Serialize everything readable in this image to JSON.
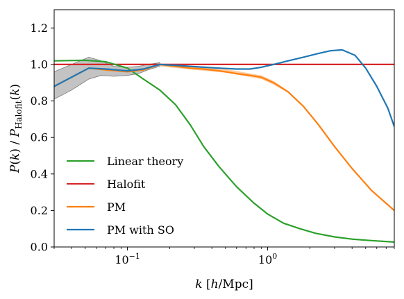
{
  "chart_data": {
    "type": "line",
    "title": "",
    "xlabel": "k [h/Mpc]",
    "ylabel": "P(k) / P_Halofit(k)",
    "xscale": "log",
    "xlim": [
      0.03,
      8
    ],
    "ylim": [
      0,
      1.3
    ],
    "grid": false,
    "legend_position": "lower-left",
    "xtick_labels": [
      "10^-1",
      "10^0"
    ],
    "yticks": [
      0.0,
      0.2,
      0.4,
      0.6,
      0.8,
      1.0,
      1.2
    ],
    "ytick_labels": [
      "0.0",
      "0.2",
      "0.4",
      "0.6",
      "0.8",
      "1.0",
      "1.2"
    ],
    "series": [
      {
        "name": "Linear theory",
        "color": "#2ca02c",
        "x": [
          0.03,
          0.05,
          0.07,
          0.1,
          0.13,
          0.17,
          0.22,
          0.28,
          0.35,
          0.45,
          0.6,
          0.8,
          1.0,
          1.3,
          1.7,
          2.2,
          3.0,
          4.0,
          5.5,
          8.0
        ],
        "y": [
          1.02,
          1.023,
          1.015,
          0.98,
          0.92,
          0.86,
          0.78,
          0.67,
          0.55,
          0.44,
          0.33,
          0.24,
          0.18,
          0.13,
          0.1,
          0.075,
          0.055,
          0.043,
          0.035,
          0.027
        ]
      },
      {
        "name": "Halofit",
        "color": "#d62728",
        "x": [
          0.03,
          8.0
        ],
        "y": [
          1.0,
          1.0
        ]
      },
      {
        "name": "PM",
        "color": "#ff7f0e",
        "x": [
          0.03,
          0.053,
          0.07,
          0.1,
          0.13,
          0.17,
          0.22,
          0.28,
          0.35,
          0.45,
          0.6,
          0.75,
          0.9,
          1.1,
          1.4,
          1.8,
          2.3,
          3.0,
          4.0,
          5.5,
          8.0
        ],
        "y": [
          0.88,
          0.98,
          0.97,
          0.96,
          0.97,
          1.0,
          0.99,
          0.98,
          0.975,
          0.965,
          0.95,
          0.94,
          0.93,
          0.9,
          0.85,
          0.77,
          0.67,
          0.55,
          0.43,
          0.31,
          0.2
        ]
      },
      {
        "name": "PM with SO",
        "color": "#1f77b4",
        "x": [
          0.03,
          0.053,
          0.07,
          0.1,
          0.13,
          0.17,
          0.22,
          0.28,
          0.35,
          0.45,
          0.6,
          0.75,
          0.9,
          1.1,
          1.4,
          1.8,
          2.3,
          2.8,
          3.4,
          4.2,
          5.0,
          6.0,
          7.2,
          8.0
        ],
        "y": [
          0.88,
          0.98,
          0.975,
          0.965,
          0.975,
          1.0,
          0.995,
          0.99,
          0.985,
          0.98,
          0.975,
          0.975,
          0.985,
          1.0,
          1.02,
          1.04,
          1.06,
          1.075,
          1.08,
          1.05,
          0.98,
          0.88,
          0.76,
          0.66
        ]
      }
    ],
    "bands": [
      {
        "color": "#888888",
        "x": [
          0.03,
          0.04,
          0.053,
          0.065,
          0.08,
          0.1,
          0.12,
          0.14,
          0.17
        ],
        "y_low": [
          0.81,
          0.86,
          0.92,
          0.94,
          0.935,
          0.94,
          0.95,
          0.97,
          0.99
        ],
        "y_high": [
          0.96,
          1.0,
          1.04,
          1.02,
          0.99,
          0.985,
          0.99,
          1.0,
          1.01
        ]
      },
      {
        "color": "#ff7f0e",
        "x": [
          0.17,
          0.3,
          0.5,
          0.7,
          0.9,
          1.1,
          1.4,
          1.8
        ],
        "y_low": [
          0.99,
          0.97,
          0.955,
          0.935,
          0.92,
          0.89,
          0.845,
          0.765
        ],
        "y_high": [
          1.005,
          0.99,
          0.975,
          0.955,
          0.94,
          0.91,
          0.855,
          0.775
        ]
      }
    ]
  }
}
